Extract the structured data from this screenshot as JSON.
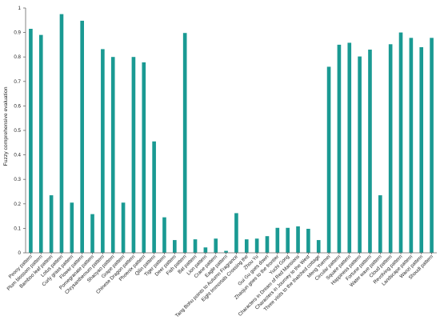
{
  "chart_data": {
    "type": "bar",
    "ylabel": "Fuzzy comprehensive evaluation",
    "xlabel": "",
    "ylim": [
      0,
      1
    ],
    "yticks": [
      "0",
      "0.1",
      "0.2",
      "0.3",
      "0.4",
      "0.5",
      "0.6",
      "0.7",
      "0.8",
      "0.9",
      "1"
    ],
    "grid": false,
    "bar_color": "#1a9a93",
    "categories": [
      "Peony pattern",
      "Plum blossom pattern",
      "Bamboo leaf pattern",
      "Lotus pattern",
      "Curly grass pattern",
      "Flower pattern",
      "Pomegranate pattern",
      "Chrysanthemum pattern",
      "Shaoyao pattern",
      "Grape pattern",
      "Chinese Dragon pattern",
      "Phoenix pattern",
      "Qilin pattern",
      "Tiger pattern",
      "Deer pattern",
      "Fish pattern",
      "Bat pattern",
      "Lion pattern",
      "Crane pattern",
      "Eagle pattern",
      "Tang Bohu points to Autumn Fragrance",
      "Eight Immortals Crossing the",
      "Zhou Yu",
      "Gui Gu goes down",
      "Zhaojun goes to the frontier",
      "Yuchi Gong",
      "Characters in Dream of Red Mansions",
      "Characters in Journey to the West",
      "Three visits to the thatched cottage",
      "Meng Yuemei",
      "Circular pattern",
      "Square pattern",
      "Happiness pattern",
      "Fortune pattern",
      "Water wave pattern",
      "Cloud pattern",
      "Revolving pattern",
      "Landscape pattern",
      "Wanzi pattern",
      "Shoudi pattern"
    ],
    "values": [
      0.915,
      0.89,
      0.235,
      0.975,
      0.205,
      0.948,
      0.158,
      0.832,
      0.8,
      0.205,
      0.8,
      0.778,
      0.455,
      0.145,
      0.052,
      0.898,
      0.055,
      0.022,
      0.058,
      0.008,
      0.162,
      0.055,
      0.058,
      0.068,
      0.102,
      0.102,
      0.108,
      0.098,
      0.052,
      0.76,
      0.85,
      0.858,
      0.802,
      0.83,
      0.235,
      0.852,
      0.9,
      0.878,
      0.84,
      0.878
    ]
  }
}
